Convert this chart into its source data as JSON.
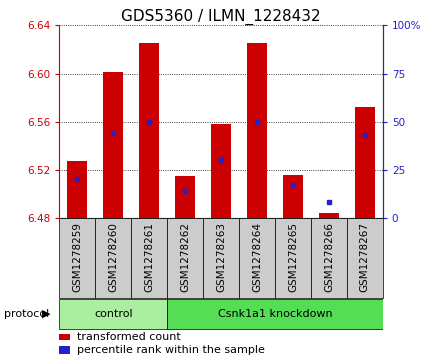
{
  "title": "GDS5360 / ILMN_1228432",
  "samples": [
    "GSM1278259",
    "GSM1278260",
    "GSM1278261",
    "GSM1278262",
    "GSM1278263",
    "GSM1278264",
    "GSM1278265",
    "GSM1278266",
    "GSM1278267"
  ],
  "red_values": [
    6.527,
    6.601,
    6.625,
    6.515,
    6.558,
    6.625,
    6.516,
    6.484,
    6.572
  ],
  "blue_values": [
    20,
    44,
    50,
    14,
    30,
    50,
    17,
    8,
    43
  ],
  "bar_base": 6.48,
  "ylim_left": [
    6.48,
    6.64
  ],
  "ylim_right": [
    0,
    100
  ],
  "yticks_left": [
    6.48,
    6.52,
    6.56,
    6.6,
    6.64
  ],
  "ytick_labels_left": [
    "6.48",
    "6.52",
    "6.56",
    "6.60",
    "6.64"
  ],
  "yticks_right": [
    0,
    25,
    50,
    75,
    100
  ],
  "ytick_labels_right": [
    "0",
    "25",
    "50",
    "75",
    "100%"
  ],
  "red_color": "#cc0000",
  "blue_color": "#2222cc",
  "bar_width": 0.55,
  "protocol_groups": [
    {
      "label": "control",
      "start": 0,
      "end": 3,
      "color": "#aaeea a"
    },
    {
      "label": "Csnk1a1 knockdown",
      "start": 3,
      "end": 9,
      "color": "#55dd55"
    }
  ],
  "protocol_label": "protocol",
  "legend_items": [
    {
      "label": "transformed count",
      "color": "#cc0000"
    },
    {
      "label": "percentile rank within the sample",
      "color": "#2222cc"
    }
  ],
  "sample_bg_color": "#cccccc",
  "grid_color": "#000000",
  "title_fontsize": 11,
  "tick_fontsize": 7.5,
  "legend_fontsize": 8
}
